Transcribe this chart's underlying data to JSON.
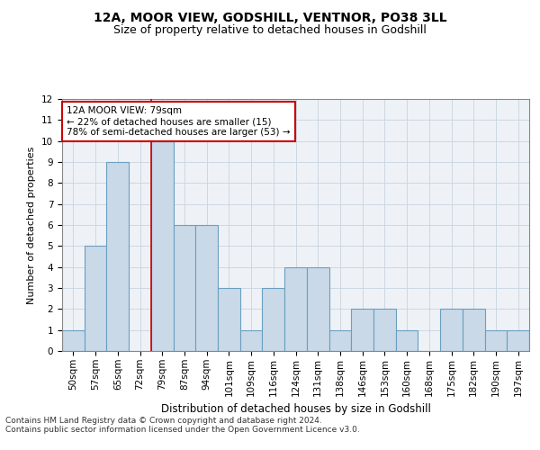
{
  "title": "12A, MOOR VIEW, GODSHILL, VENTNOR, PO38 3LL",
  "subtitle": "Size of property relative to detached houses in Godshill",
  "xlabel": "Distribution of detached houses by size in Godshill",
  "ylabel": "Number of detached properties",
  "categories": [
    "50sqm",
    "57sqm",
    "65sqm",
    "72sqm",
    "79sqm",
    "87sqm",
    "94sqm",
    "101sqm",
    "109sqm",
    "116sqm",
    "124sqm",
    "131sqm",
    "138sqm",
    "146sqm",
    "153sqm",
    "160sqm",
    "168sqm",
    "175sqm",
    "182sqm",
    "190sqm",
    "197sqm"
  ],
  "values": [
    1,
    5,
    9,
    0,
    10,
    6,
    6,
    3,
    1,
    3,
    4,
    4,
    1,
    2,
    2,
    1,
    0,
    2,
    2,
    1,
    1
  ],
  "bar_color": "#c9d9e8",
  "bar_edge_color": "#6a9fc0",
  "highlight_index": 4,
  "highlight_line_color": "#cc0000",
  "annotation_text": "12A MOOR VIEW: 79sqm\n← 22% of detached houses are smaller (15)\n78% of semi-detached houses are larger (53) →",
  "annotation_box_color": "#ffffff",
  "annotation_box_edge_color": "#cc0000",
  "ylim": [
    0,
    12
  ],
  "yticks": [
    0,
    1,
    2,
    3,
    4,
    5,
    6,
    7,
    8,
    9,
    10,
    11,
    12
  ],
  "grid_color": "#c8d4de",
  "background_color": "#eef2f7",
  "footer_text": "Contains HM Land Registry data © Crown copyright and database right 2024.\nContains public sector information licensed under the Open Government Licence v3.0.",
  "title_fontsize": 10,
  "subtitle_fontsize": 9,
  "xlabel_fontsize": 8.5,
  "ylabel_fontsize": 8,
  "tick_fontsize": 7.5,
  "annotation_fontsize": 7.5,
  "footer_fontsize": 6.5
}
